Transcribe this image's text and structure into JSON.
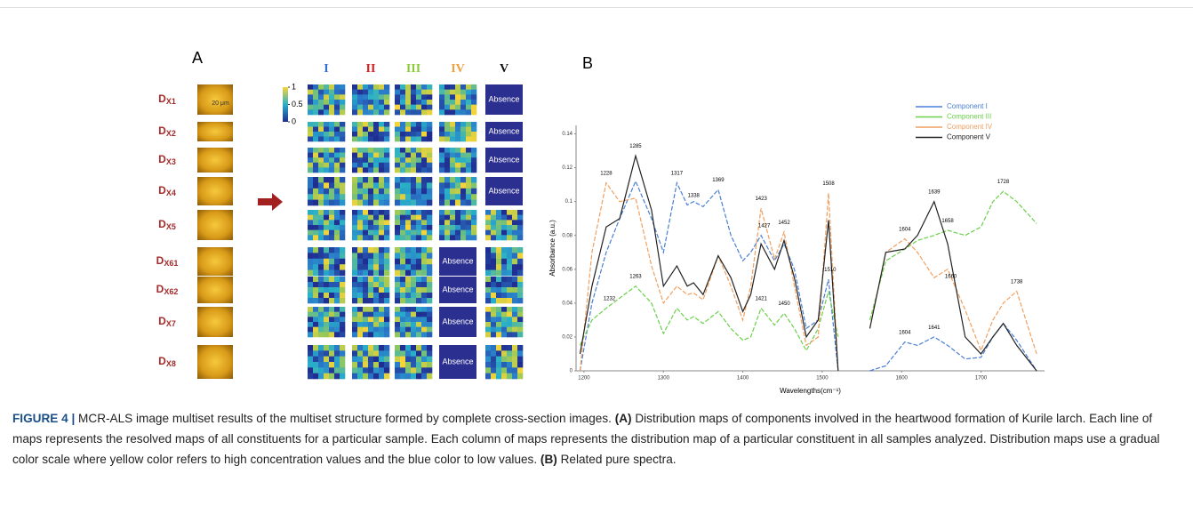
{
  "panel_a": {
    "label": "A",
    "columns": [
      {
        "text": "I",
        "color": "#2f6fd6"
      },
      {
        "text": "II",
        "color": "#d42020"
      },
      {
        "text": "III",
        "color": "#8ccc3c"
      },
      {
        "text": "IV",
        "color": "#f0a040"
      },
      {
        "text": "V",
        "color": "#111111"
      }
    ],
    "colorbar_lim": [
      0,
      1
    ],
    "colorbar_ticks": [
      1,
      0.5,
      0
    ],
    "scale_bar": "20 μm",
    "rows": [
      {
        "label": "D",
        "sub": "X1",
        "cells": [
          null,
          null,
          null,
          null,
          "Absence"
        ]
      },
      {
        "label": "D",
        "sub": "X2",
        "cells": [
          null,
          null,
          null,
          null,
          "Absence"
        ]
      },
      {
        "label": "D",
        "sub": "X3",
        "cells": [
          null,
          null,
          null,
          null,
          "Absence"
        ]
      },
      {
        "label": "D",
        "sub": "X4",
        "cells": [
          null,
          null,
          null,
          null,
          "Absence"
        ]
      },
      {
        "label": "D",
        "sub": "X5",
        "cells": [
          null,
          null,
          null,
          null,
          null
        ]
      },
      {
        "label": "D",
        "sub": "X61",
        "cells": [
          null,
          null,
          null,
          "Absence",
          null
        ]
      },
      {
        "label": "D",
        "sub": "X62",
        "cells": [
          null,
          null,
          null,
          "Absence",
          null
        ]
      },
      {
        "label": "D",
        "sub": "X7",
        "cells": [
          null,
          null,
          null,
          "Absence",
          null
        ]
      },
      {
        "label": "D",
        "sub": "X8",
        "cells": [
          null,
          null,
          null,
          "Absence",
          null
        ]
      }
    ]
  },
  "chart_data": {
    "type": "line",
    "panel_label": "B",
    "x_label": "Wavelengths(cm⁻¹)",
    "y_label": "Absorbance (a.u.)",
    "x": [
      1195,
      1210,
      1228,
      1245,
      1265,
      1285,
      1300,
      1317,
      1330,
      1338,
      1350,
      1369,
      1385,
      1400,
      1410,
      1423,
      1440,
      1452,
      1465,
      1480,
      1495,
      1508,
      1520,
      1540,
      1560,
      1580,
      1604,
      1620,
      1641,
      1658,
      1680,
      1700,
      1715,
      1728,
      1745,
      1770
    ],
    "series": [
      {
        "name": "Component I",
        "color": "#4a7fd4",
        "values": [
          0,
          0.04,
          0.07,
          0.09,
          0.112,
          0.09,
          0.07,
          0.111,
          0.098,
          0.1,
          0.097,
          0.107,
          0.08,
          0.065,
          0.07,
          0.08,
          0.065,
          0.075,
          0.06,
          0.025,
          0.03,
          0.054,
          0,
          null,
          0,
          0.003,
          0.017,
          0.015,
          0.02,
          0.015,
          0.007,
          0.008,
          0.02,
          0.028,
          0.018,
          0
        ]
      },
      {
        "name": "Component III",
        "color": "#6ad04a",
        "values": [
          0.015,
          0.03,
          0.037,
          0.043,
          0.05,
          0.04,
          0.022,
          0.037,
          0.03,
          0.032,
          0.028,
          0.035,
          0.025,
          0.018,
          0.02,
          0.037,
          0.027,
          0.034,
          0.025,
          0.012,
          0.025,
          0.047,
          0.02,
          null,
          0.03,
          0.065,
          0.072,
          0.077,
          0.08,
          0.083,
          0.08,
          0.085,
          0.1,
          0.106,
          0.1,
          0.087
        ]
      },
      {
        "name": "Component IV",
        "color": "#f0a060",
        "values": [
          0,
          0.07,
          0.111,
          0.1,
          0.102,
          0.062,
          0.04,
          0.05,
          0.045,
          0.046,
          0.042,
          0.068,
          0.05,
          0.03,
          0.05,
          0.096,
          0.066,
          0.082,
          0.05,
          0.015,
          0.02,
          0.105,
          0,
          null,
          0.025,
          0.07,
          0.078,
          0.07,
          0.055,
          0.06,
          0.036,
          0.012,
          0.03,
          0.04,
          0.047,
          0.01
        ]
      },
      {
        "name": "Component V",
        "color": "#222222",
        "values": [
          0.01,
          0.05,
          0.085,
          0.09,
          0.127,
          0.095,
          0.05,
          0.062,
          0.05,
          0.052,
          0.045,
          0.068,
          0.055,
          0.035,
          0.045,
          0.075,
          0.06,
          0.077,
          0.055,
          0.02,
          0.03,
          0.089,
          0,
          null,
          0.025,
          0.07,
          0.072,
          0.08,
          0.1,
          0.075,
          0.02,
          0.01,
          0.02,
          0.028,
          0.015,
          0
        ]
      }
    ],
    "xlim": [
      1190,
      1780
    ],
    "xticks": [
      1200,
      1300,
      1400,
      1500,
      1600,
      1700
    ],
    "ylim": [
      0,
      0.145
    ],
    "yticks": [
      0,
      0.02,
      0.04,
      0.06,
      0.08,
      0.1,
      0.12,
      0.14
    ],
    "legend": "upper right",
    "annotations": [
      {
        "text": "1285",
        "x": 1265,
        "y": 0.13
      },
      {
        "text": "1228",
        "x": 1228,
        "y": 0.114
      },
      {
        "text": "1317",
        "x": 1317,
        "y": 0.114
      },
      {
        "text": "1338",
        "x": 1338,
        "y": 0.101
      },
      {
        "text": "1369",
        "x": 1369,
        "y": 0.11
      },
      {
        "text": "1423",
        "x": 1423,
        "y": 0.099
      },
      {
        "text": "1427",
        "x": 1427,
        "y": 0.083
      },
      {
        "text": "1452",
        "x": 1452,
        "y": 0.085
      },
      {
        "text": "1508",
        "x": 1508,
        "y": 0.108
      },
      {
        "text": "1510",
        "x": 1510,
        "y": 0.057
      },
      {
        "text": "1232",
        "x": 1232,
        "y": 0.04
      },
      {
        "text": "1263",
        "x": 1265,
        "y": 0.053
      },
      {
        "text": "1421",
        "x": 1423,
        "y": 0.04
      },
      {
        "text": "1450",
        "x": 1452,
        "y": 0.037
      },
      {
        "text": "1604",
        "x": 1604,
        "y": 0.081
      },
      {
        "text": "1604",
        "x": 1604,
        "y": 0.02
      },
      {
        "text": "1641",
        "x": 1641,
        "y": 0.023
      },
      {
        "text": "1639",
        "x": 1641,
        "y": 0.103
      },
      {
        "text": "1658",
        "x": 1658,
        "y": 0.086
      },
      {
        "text": "1728",
        "x": 1728,
        "y": 0.109
      },
      {
        "text": "1660",
        "x": 1662,
        "y": 0.053
      },
      {
        "text": "1738",
        "x": 1745,
        "y": 0.05
      }
    ]
  },
  "caption": [
    {
      "text": "FIGURE 4 |",
      "bold": true
    },
    {
      "text": " MCR-ALS image multiset results of the multiset structure formed by complete cross-section images. ",
      "bold": false
    },
    {
      "text": "(A)",
      "bold": true
    },
    {
      "text": " Distribution maps of components involved in the heartwood formation of Kurile larch. Each line of maps represents the resolved maps of all constituents for a particular sample. Each column of maps represents the distribution map of a particular constituent in all samples analyzed. Distribution maps use a gradual color scale where yellow color refers to high concentration values and the blue color to low values. ",
      "bold": false
    },
    {
      "text": "(B)",
      "bold": true
    },
    {
      "text": " Related pure spectra.",
      "bold": false
    }
  ]
}
